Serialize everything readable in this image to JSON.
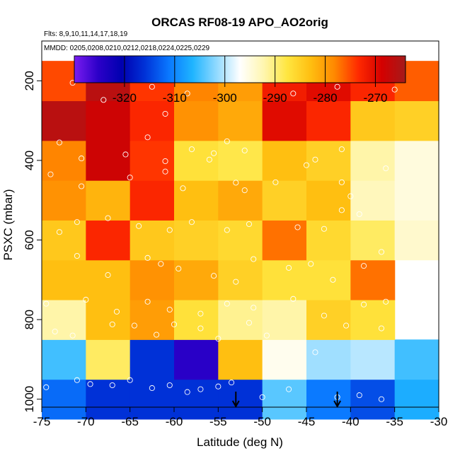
{
  "chart_data": {
    "type": "heatmap",
    "title": "ORCAS RF08-19 APO_AO2orig",
    "subtitle_flights": "Flts: 8,9,10,11,14,17,18,19",
    "subtitle_dates": "MMDD: 0205,0208,0210,0212,0218,0224,0225,0229",
    "xlabel": "Latitude (deg N)",
    "ylabel": "PSXC (mbar)",
    "xlim": [
      -75,
      -30
    ],
    "ylim": [
      1020,
      100
    ],
    "x_ticks": [
      -75,
      -70,
      -65,
      -60,
      -55,
      -50,
      -45,
      -40,
      -35,
      -30
    ],
    "y_ticks": [
      200,
      400,
      600,
      800,
      1000
    ],
    "colorbar": {
      "range": [
        -330,
        -264
      ],
      "ticks": [
        -320,
        -310,
        -300,
        -290,
        -280,
        -270
      ],
      "colors": [
        "#7a1cf0",
        "#2c00c8",
        "#0000b0",
        "#0033d8",
        "#0a78ff",
        "#1fb4ff",
        "#8fd9ff",
        "#ffffff",
        "#fff6b0",
        "#ffe640",
        "#ffbe10",
        "#ff8800",
        "#ff2a00",
        "#d40000",
        "#a51b1b"
      ]
    },
    "x_bins": [
      -75,
      -70,
      -65,
      -60,
      -55,
      -50,
      -45,
      -40,
      -35
    ],
    "y_bins": [
      1000,
      900,
      800,
      700,
      600,
      500,
      400,
      300,
      200
    ],
    "grid_values": [
      [
        -312,
        -316,
        -316,
        -316,
        -316,
        -304,
        -311,
        -314,
        -307
      ],
      [
        -305,
        -289,
        -316,
        -325,
        -283,
        -296,
        -301,
        -300,
        -305
      ],
      [
        -292,
        -283,
        -280,
        -287,
        -291,
        -292,
        -285,
        -287,
        null
      ],
      [
        -283,
        -283,
        -279,
        -281,
        -285,
        -287,
        -287,
        -277,
        null
      ],
      [
        -284,
        -273,
        -284,
        -285,
        -286,
        -277,
        -286,
        -289,
        -294
      ],
      [
        -279,
        -282,
        -273,
        -283,
        -281,
        -285,
        -283,
        -293,
        -295
      ],
      [
        -278,
        -268,
        -274,
        -287,
        -288,
        -283,
        -285,
        -292,
        -295
      ],
      [
        -266,
        -268,
        -273,
        -279,
        -281,
        -270,
        -273,
        -284,
        -285
      ],
      [
        -275,
        -266,
        -274,
        -278,
        -280,
        -272,
        -270,
        -273,
        -276
      ]
    ],
    "grid_labels": {
      "lat_bins": "-75..-35 in 5 deg steps",
      "pressure_bins": "100..1000 in 100 mbar steps"
    },
    "points": [
      [
        -71.5,
        205
      ],
      [
        -67,
        190
      ],
      [
        -65,
        180
      ],
      [
        -63,
        190
      ],
      [
        -62.5,
        215
      ],
      [
        -60.5,
        180
      ],
      [
        -59,
        190
      ],
      [
        -57,
        185
      ],
      [
        -55,
        190
      ],
      [
        -53,
        180
      ],
      [
        -52,
        195
      ],
      [
        -50,
        180
      ],
      [
        -48,
        190
      ],
      [
        -41.5,
        215
      ],
      [
        -36,
        190
      ],
      [
        -35.5,
        185
      ],
      [
        -58.5,
        232
      ],
      [
        -46.5,
        232
      ],
      [
        -68,
        248
      ],
      [
        -61,
        283
      ],
      [
        -35,
        222
      ],
      [
        -73,
        355
      ],
      [
        -70.5,
        395
      ],
      [
        -65.5,
        385
      ],
      [
        -63,
        342
      ],
      [
        -58,
        372
      ],
      [
        -56,
        398
      ],
      [
        -54,
        352
      ],
      [
        -52,
        375
      ],
      [
        -44,
        398
      ],
      [
        -41,
        372
      ],
      [
        -61,
        402
      ],
      [
        -55.5,
        382
      ],
      [
        -74,
        435
      ],
      [
        -70.5,
        465
      ],
      [
        -65,
        443
      ],
      [
        -61,
        428
      ],
      [
        -59,
        470
      ],
      [
        -53,
        456
      ],
      [
        -52,
        475
      ],
      [
        -48.5,
        455
      ],
      [
        -45,
        412
      ],
      [
        -41,
        455
      ],
      [
        -40,
        490
      ],
      [
        -36,
        420
      ],
      [
        -73,
        580
      ],
      [
        -71,
        555
      ],
      [
        -67.5,
        545
      ],
      [
        -64,
        565
      ],
      [
        -60.5,
        575
      ],
      [
        -58,
        555
      ],
      [
        -54,
        575
      ],
      [
        -51.5,
        560
      ],
      [
        -46,
        568
      ],
      [
        -43,
        572
      ],
      [
        -41,
        525
      ],
      [
        -39,
        535
      ],
      [
        -71,
        640
      ],
      [
        -67.5,
        688
      ],
      [
        -63,
        645
      ],
      [
        -61.5,
        660
      ],
      [
        -59.5,
        672
      ],
      [
        -55.5,
        690
      ],
      [
        -53,
        705
      ],
      [
        -51,
        648
      ],
      [
        -47,
        670
      ],
      [
        -44.5,
        660
      ],
      [
        -42,
        700
      ],
      [
        -38.5,
        665
      ],
      [
        -36.5,
        630
      ],
      [
        -74.5,
        760
      ],
      [
        -70,
        750
      ],
      [
        -66.5,
        780
      ],
      [
        -63,
        755
      ],
      [
        -60.5,
        775
      ],
      [
        -57,
        785
      ],
      [
        -54,
        760
      ],
      [
        -51,
        770
      ],
      [
        -46.5,
        748
      ],
      [
        -43,
        790
      ],
      [
        -38.5,
        762
      ],
      [
        -36,
        755
      ],
      [
        -73.5,
        830
      ],
      [
        -71.5,
        840
      ],
      [
        -67,
        812
      ],
      [
        -64.5,
        815
      ],
      [
        -62,
        838
      ],
      [
        -60,
        812
      ],
      [
        -57,
        822
      ],
      [
        -55,
        848
      ],
      [
        -51.5,
        808
      ],
      [
        -49.5,
        840
      ],
      [
        -44,
        882
      ],
      [
        -40.5,
        815
      ],
      [
        -36.5,
        822
      ],
      [
        -74.5,
        970
      ],
      [
        -71,
        952
      ],
      [
        -69.5,
        962
      ],
      [
        -67,
        965
      ],
      [
        -65,
        952
      ],
      [
        -62.5,
        972
      ],
      [
        -60.5,
        965
      ],
      [
        -58.5,
        982
      ],
      [
        -57,
        975
      ],
      [
        -55,
        968
      ],
      [
        -53.5,
        958
      ],
      [
        -50,
        995
      ],
      [
        -47,
        975
      ],
      [
        -41.5,
        995
      ],
      [
        -39,
        990
      ],
      [
        -36.5,
        1000
      ]
    ],
    "arrows": [
      {
        "lat": -53.0,
        "label": "flight-marker"
      },
      {
        "lat": -41.5,
        "label": "flight-marker"
      }
    ]
  }
}
